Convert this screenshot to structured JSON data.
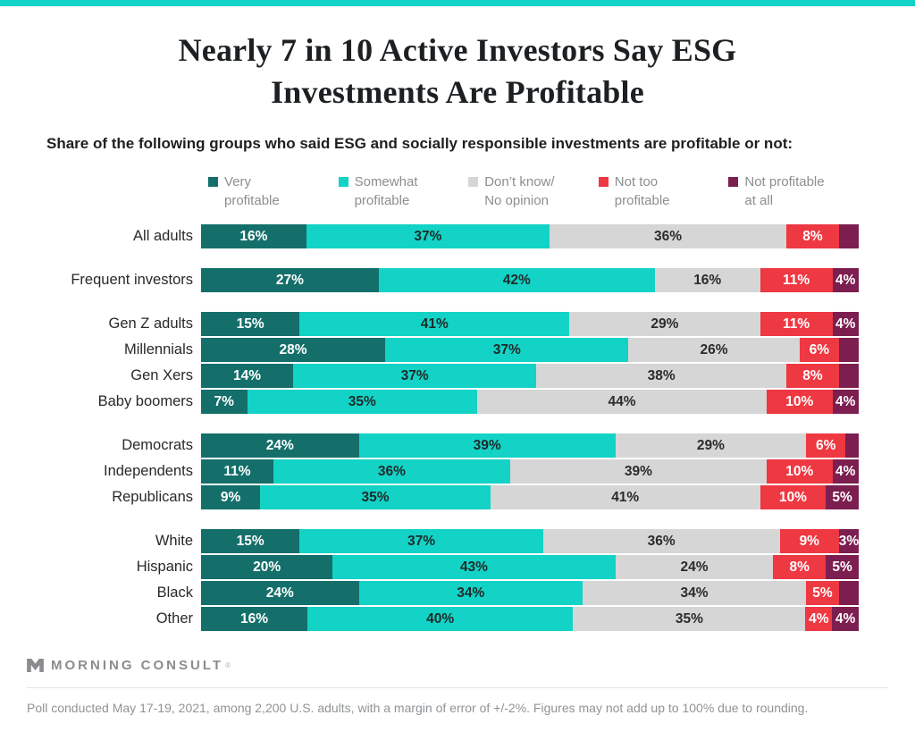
{
  "theme": {
    "top_bar_color": "#12d3c6",
    "brand_gray": "#8a8c8f"
  },
  "chart_data": {
    "type": "bar",
    "stacked": true,
    "orientation": "horizontal",
    "unit": "%",
    "x_range": [
      0,
      100
    ],
    "title_line1": "Nearly 7 in 10 Active Investors Say ESG",
    "title_line2": "Investments Are Profitable",
    "subtitle": "Share of the following groups who said ESG and socially responsible investments are profitable or not:",
    "series": [
      "Very profitable",
      "Somewhat profitable",
      "Don’t know/No opinion",
      "Not too profitable",
      "Not profitable at all"
    ],
    "colors": [
      "#146f6a",
      "#12d3c6",
      "#d6d6d6",
      "#ee3842",
      "#7c1e4f"
    ],
    "label_colors": [
      "#ffffff",
      "#1e2a2a",
      "#2b2b2b",
      "#ffffff",
      "#ffffff"
    ],
    "legend": [
      {
        "line1": "Very",
        "line2": "profitable"
      },
      {
        "line1": "Somewhat",
        "line2": "profitable"
      },
      {
        "line1": "Don’t know/",
        "line2": "No opinion"
      },
      {
        "line1": "Not too",
        "line2": "profitable"
      },
      {
        "line1": "Not profitable",
        "line2": "at all"
      }
    ],
    "groups": [
      [
        {
          "label": "All adults",
          "values": [
            16,
            37,
            36,
            8,
            3
          ],
          "labels": [
            "16%",
            "37%",
            "36%",
            "8%",
            ""
          ]
        }
      ],
      [
        {
          "label": "Frequent investors",
          "values": [
            27,
            42,
            16,
            11,
            4
          ],
          "labels": [
            "27%",
            "42%",
            "16%",
            "11%",
            "4%"
          ]
        }
      ],
      [
        {
          "label": "Gen Z adults",
          "values": [
            15,
            41,
            29,
            11,
            4
          ],
          "labels": [
            "15%",
            "41%",
            "29%",
            "11%",
            "4%"
          ]
        },
        {
          "label": "Millennials",
          "values": [
            28,
            37,
            26,
            6,
            3
          ],
          "labels": [
            "28%",
            "37%",
            "26%",
            "6%",
            ""
          ]
        },
        {
          "label": "Gen Xers",
          "values": [
            14,
            37,
            38,
            8,
            3
          ],
          "labels": [
            "14%",
            "37%",
            "38%",
            "8%",
            ""
          ]
        },
        {
          "label": "Baby boomers",
          "values": [
            7,
            35,
            44,
            10,
            4
          ],
          "labels": [
            "7%",
            "35%",
            "44%",
            "10%",
            "4%"
          ]
        }
      ],
      [
        {
          "label": "Democrats",
          "values": [
            24,
            39,
            29,
            6,
            2
          ],
          "labels": [
            "24%",
            "39%",
            "29%",
            "6%",
            ""
          ]
        },
        {
          "label": "Independents",
          "values": [
            11,
            36,
            39,
            10,
            4
          ],
          "labels": [
            "11%",
            "36%",
            "39%",
            "10%",
            "4%"
          ]
        },
        {
          "label": "Republicans",
          "values": [
            9,
            35,
            41,
            10,
            5
          ],
          "labels": [
            "9%",
            "35%",
            "41%",
            "10%",
            "5%"
          ]
        }
      ],
      [
        {
          "label": "White",
          "values": [
            15,
            37,
            36,
            9,
            3
          ],
          "labels": [
            "15%",
            "37%",
            "36%",
            "9%",
            "3%"
          ]
        },
        {
          "label": "Hispanic",
          "values": [
            20,
            43,
            24,
            8,
            5
          ],
          "labels": [
            "20%",
            "43%",
            "24%",
            "8%",
            "5%"
          ]
        },
        {
          "label": "Black",
          "values": [
            24,
            34,
            34,
            5,
            3
          ],
          "labels": [
            "24%",
            "34%",
            "34%",
            "5%",
            ""
          ]
        },
        {
          "label": "Other",
          "values": [
            16,
            40,
            35,
            4,
            4
          ],
          "labels": [
            "16%",
            "40%",
            "35%",
            "4%",
            "4%"
          ]
        }
      ]
    ]
  },
  "footer": {
    "brand": "MORNING CONSULT",
    "trademark": "®",
    "note": "Poll conducted May 17-19, 2021, among 2,200 U.S. adults, with a margin of error of +/-2%. Figures may not add up to 100% due to rounding."
  }
}
